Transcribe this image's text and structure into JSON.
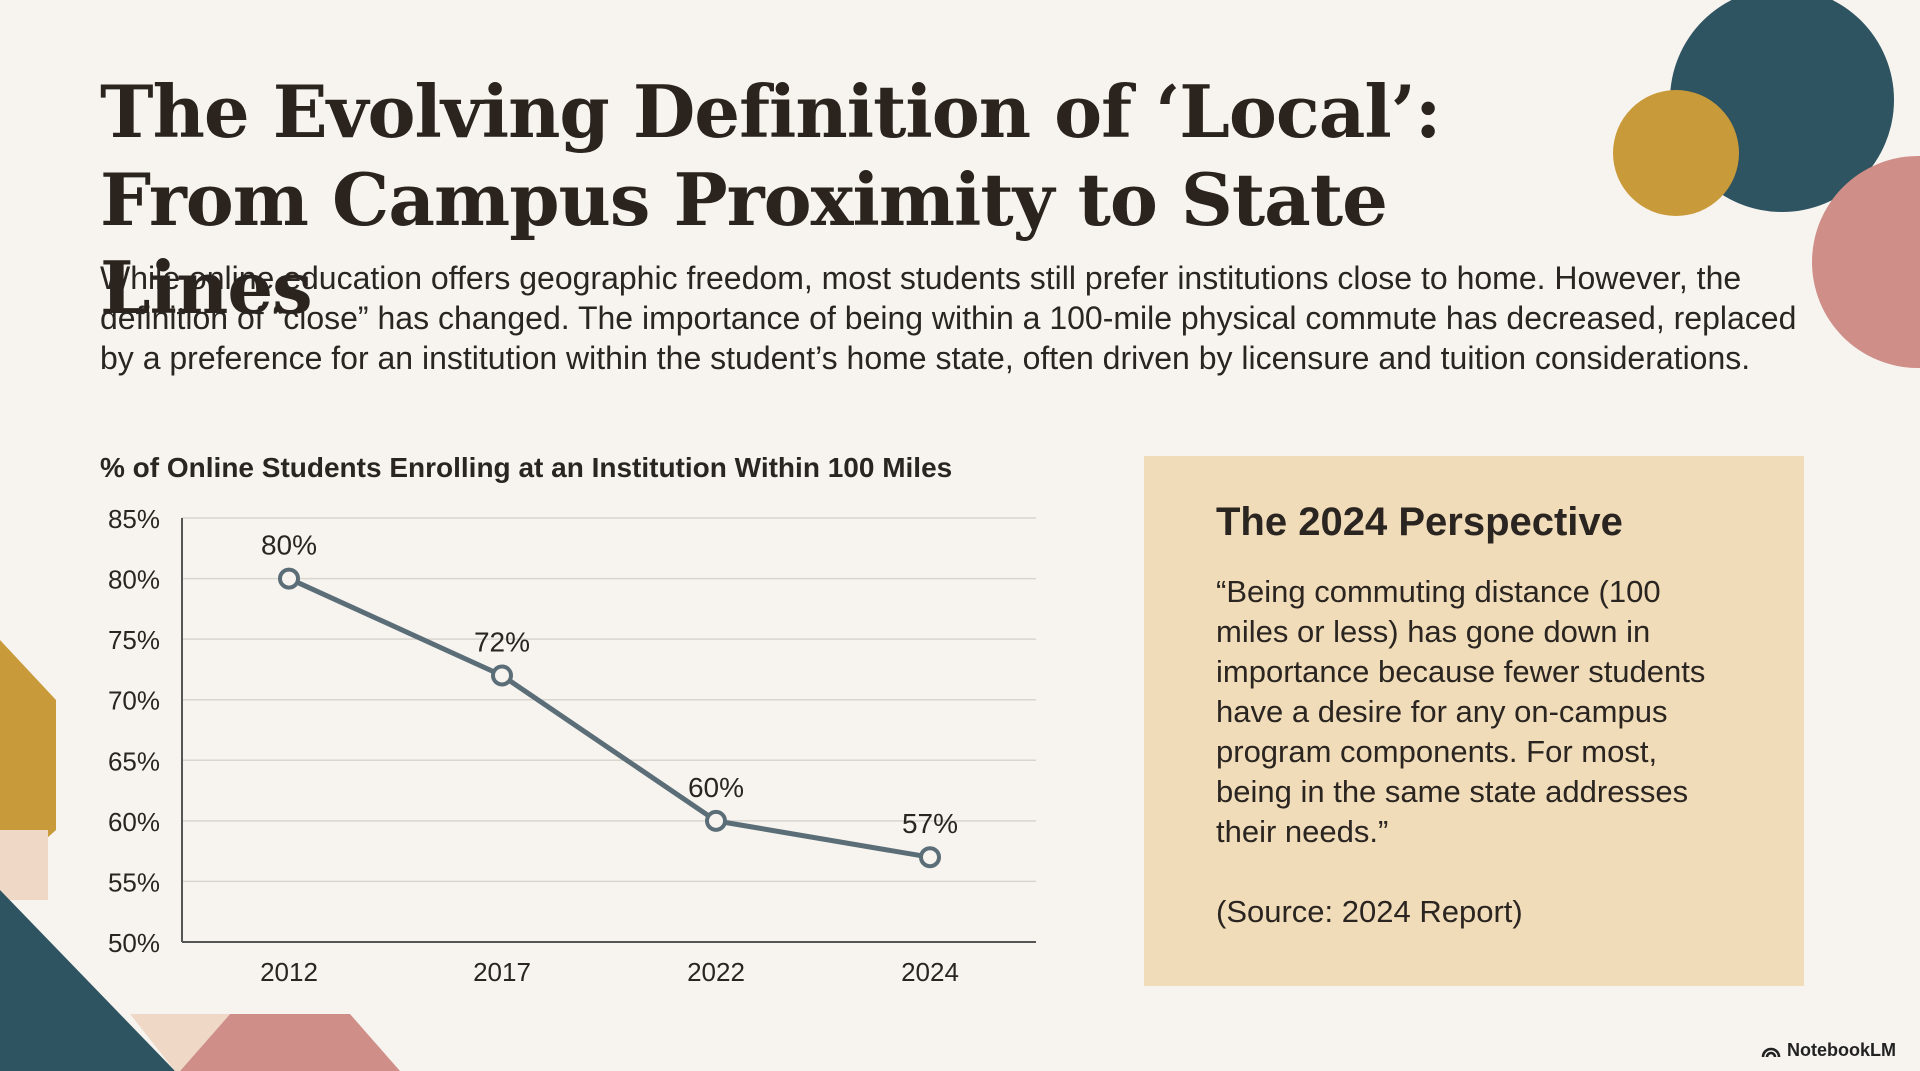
{
  "title": "The Evolving Definition of ‘Local’: From Campus Proximity to State Lines",
  "intro": "While online education offers geographic freedom, most students still prefer institutions close to home. However, the definition of “close” has changed. The importance of being within a 100-mile physical commute has decreased, replaced by a preference for an institution within the student’s home state, often driven by licensure and tuition considerations.",
  "quote_panel": {
    "heading": "The 2024 Perspective",
    "quote": "“Being commuting distance (100 miles or less) has gone down in importance because fewer students have a desire for any on-campus program components. For most, being in the same state addresses their needs.”",
    "source": "(Source: 2024 Report)"
  },
  "brand": {
    "name": "NotebookLM",
    "icon": "notebooklm-logo-icon"
  },
  "colors": {
    "background": "#f7f4ef",
    "line": "#5b6e78",
    "panel": "#f0dcb8",
    "teal": "#2f5461",
    "mustard": "#c99a3a",
    "rose": "#cf8f88",
    "text": "#2b2521"
  },
  "chart_data": {
    "type": "line",
    "title": "% of Online Students Enrolling at an Institution Within 100 Miles",
    "categories": [
      "2012",
      "2017",
      "2022",
      "2024"
    ],
    "values": [
      80,
      72,
      60,
      57
    ],
    "data_labels": [
      "80%",
      "72%",
      "60%",
      "57%"
    ],
    "ylim": [
      50,
      85
    ],
    "yticks": [
      85,
      80,
      75,
      70,
      65,
      60,
      55,
      50
    ],
    "ytick_labels": [
      "85%",
      "80%",
      "75%",
      "70%",
      "65%",
      "60%",
      "55%",
      "50%"
    ],
    "xlabel": "",
    "ylabel": "",
    "grid": true,
    "marker": "open-circle"
  }
}
